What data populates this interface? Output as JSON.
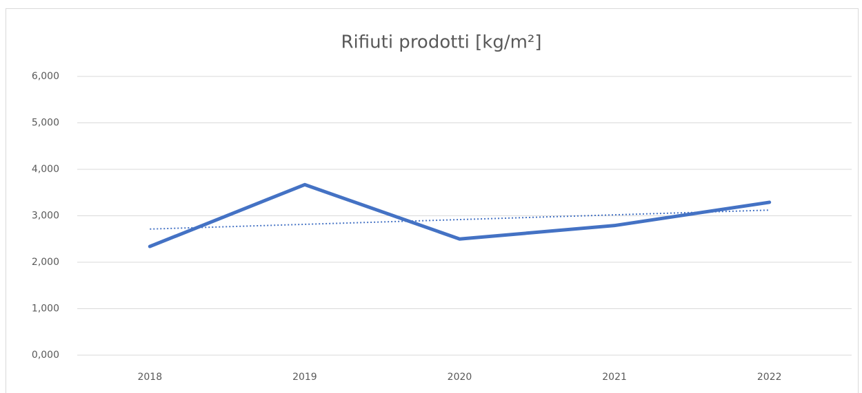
{
  "chart_data": {
    "type": "line",
    "title": "Rifiuti prodotti [kg/m²]",
    "categories": [
      "2018",
      "2019",
      "2020",
      "2021",
      "2022"
    ],
    "values": [
      2.34,
      3.67,
      2.5,
      2.79,
      3.29
    ],
    "color": "#4472c4",
    "trendline": true,
    "ylim": [
      0,
      6
    ],
    "yticks": [
      {
        "value": 0,
        "label": "0,000"
      },
      {
        "value": 1,
        "label": "1,000"
      },
      {
        "value": 2,
        "label": "2,000"
      },
      {
        "value": 3,
        "label": "3,000"
      },
      {
        "value": 4,
        "label": "4,000"
      },
      {
        "value": 5,
        "label": "5,000"
      },
      {
        "value": 6,
        "label": "6,000"
      }
    ],
    "grid": true
  }
}
